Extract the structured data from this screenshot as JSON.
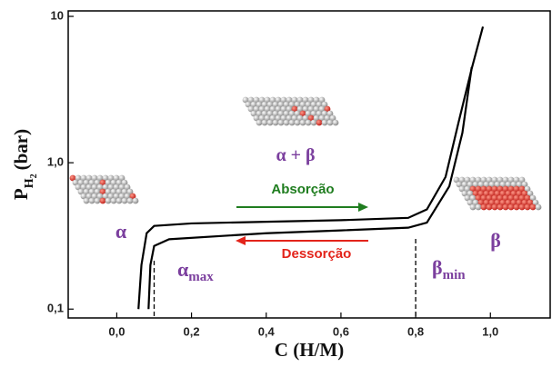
{
  "chart_data": {
    "type": "line",
    "log_y": true,
    "xlim": [
      -0.13,
      1.16
    ],
    "ylim": [
      0.087,
      10.9
    ],
    "xticks": [
      {
        "value": 0,
        "label": "0,0"
      },
      {
        "value": 0.2,
        "label": "0,2"
      },
      {
        "value": 0.4,
        "label": "0,4"
      },
      {
        "value": 0.6,
        "label": "0,6"
      },
      {
        "value": 0.8,
        "label": "0,8"
      },
      {
        "value": 1,
        "label": "1,0"
      }
    ],
    "yticks": [
      {
        "value": 0.1,
        "label": "0,1"
      },
      {
        "value": 1,
        "label": "1,0"
      },
      10
    ],
    "x_label": "C (H/M)",
    "y_label": {
      "main": "P",
      "sub": "H",
      "subsub": "2",
      "unit": "(bar)"
    },
    "series": [
      {
        "color": "#000000",
        "x": [
          0.058,
          0.066,
          0.08,
          0.1,
          0.2,
          0.4,
          0.6,
          0.78,
          0.83,
          0.88,
          0.915,
          0.95,
          0.98
        ],
        "values": [
          0.1,
          0.2,
          0.33,
          0.37,
          0.385,
          0.395,
          0.405,
          0.42,
          0.48,
          0.8,
          1.9,
          4.4,
          8.5
        ]
      },
      {
        "color": "#000000",
        "x": [
          0.085,
          0.09,
          0.1,
          0.14,
          0.4,
          0.6,
          0.78,
          0.83,
          0.89,
          0.925,
          0.95
        ],
        "values": [
          0.1,
          0.2,
          0.27,
          0.3,
          0.33,
          0.345,
          0.36,
          0.39,
          0.69,
          1.6,
          4.5
        ]
      }
    ],
    "markers": [
      {
        "x": 0.1,
        "top": 0.22
      },
      {
        "x": 0.8,
        "top": 0.31
      }
    ],
    "annotations": {
      "alpha": "α",
      "alpha_beta": "α + β",
      "beta": "β",
      "alpha_max": {
        "main": "α",
        "sub": "max"
      },
      "beta_min": {
        "main": "β",
        "sub": "min"
      },
      "absorption": {
        "text": "Absorção",
        "color": "#1f7d1f"
      },
      "desorption": {
        "text": "Dessorção",
        "color": "#e3241b"
      }
    }
  }
}
